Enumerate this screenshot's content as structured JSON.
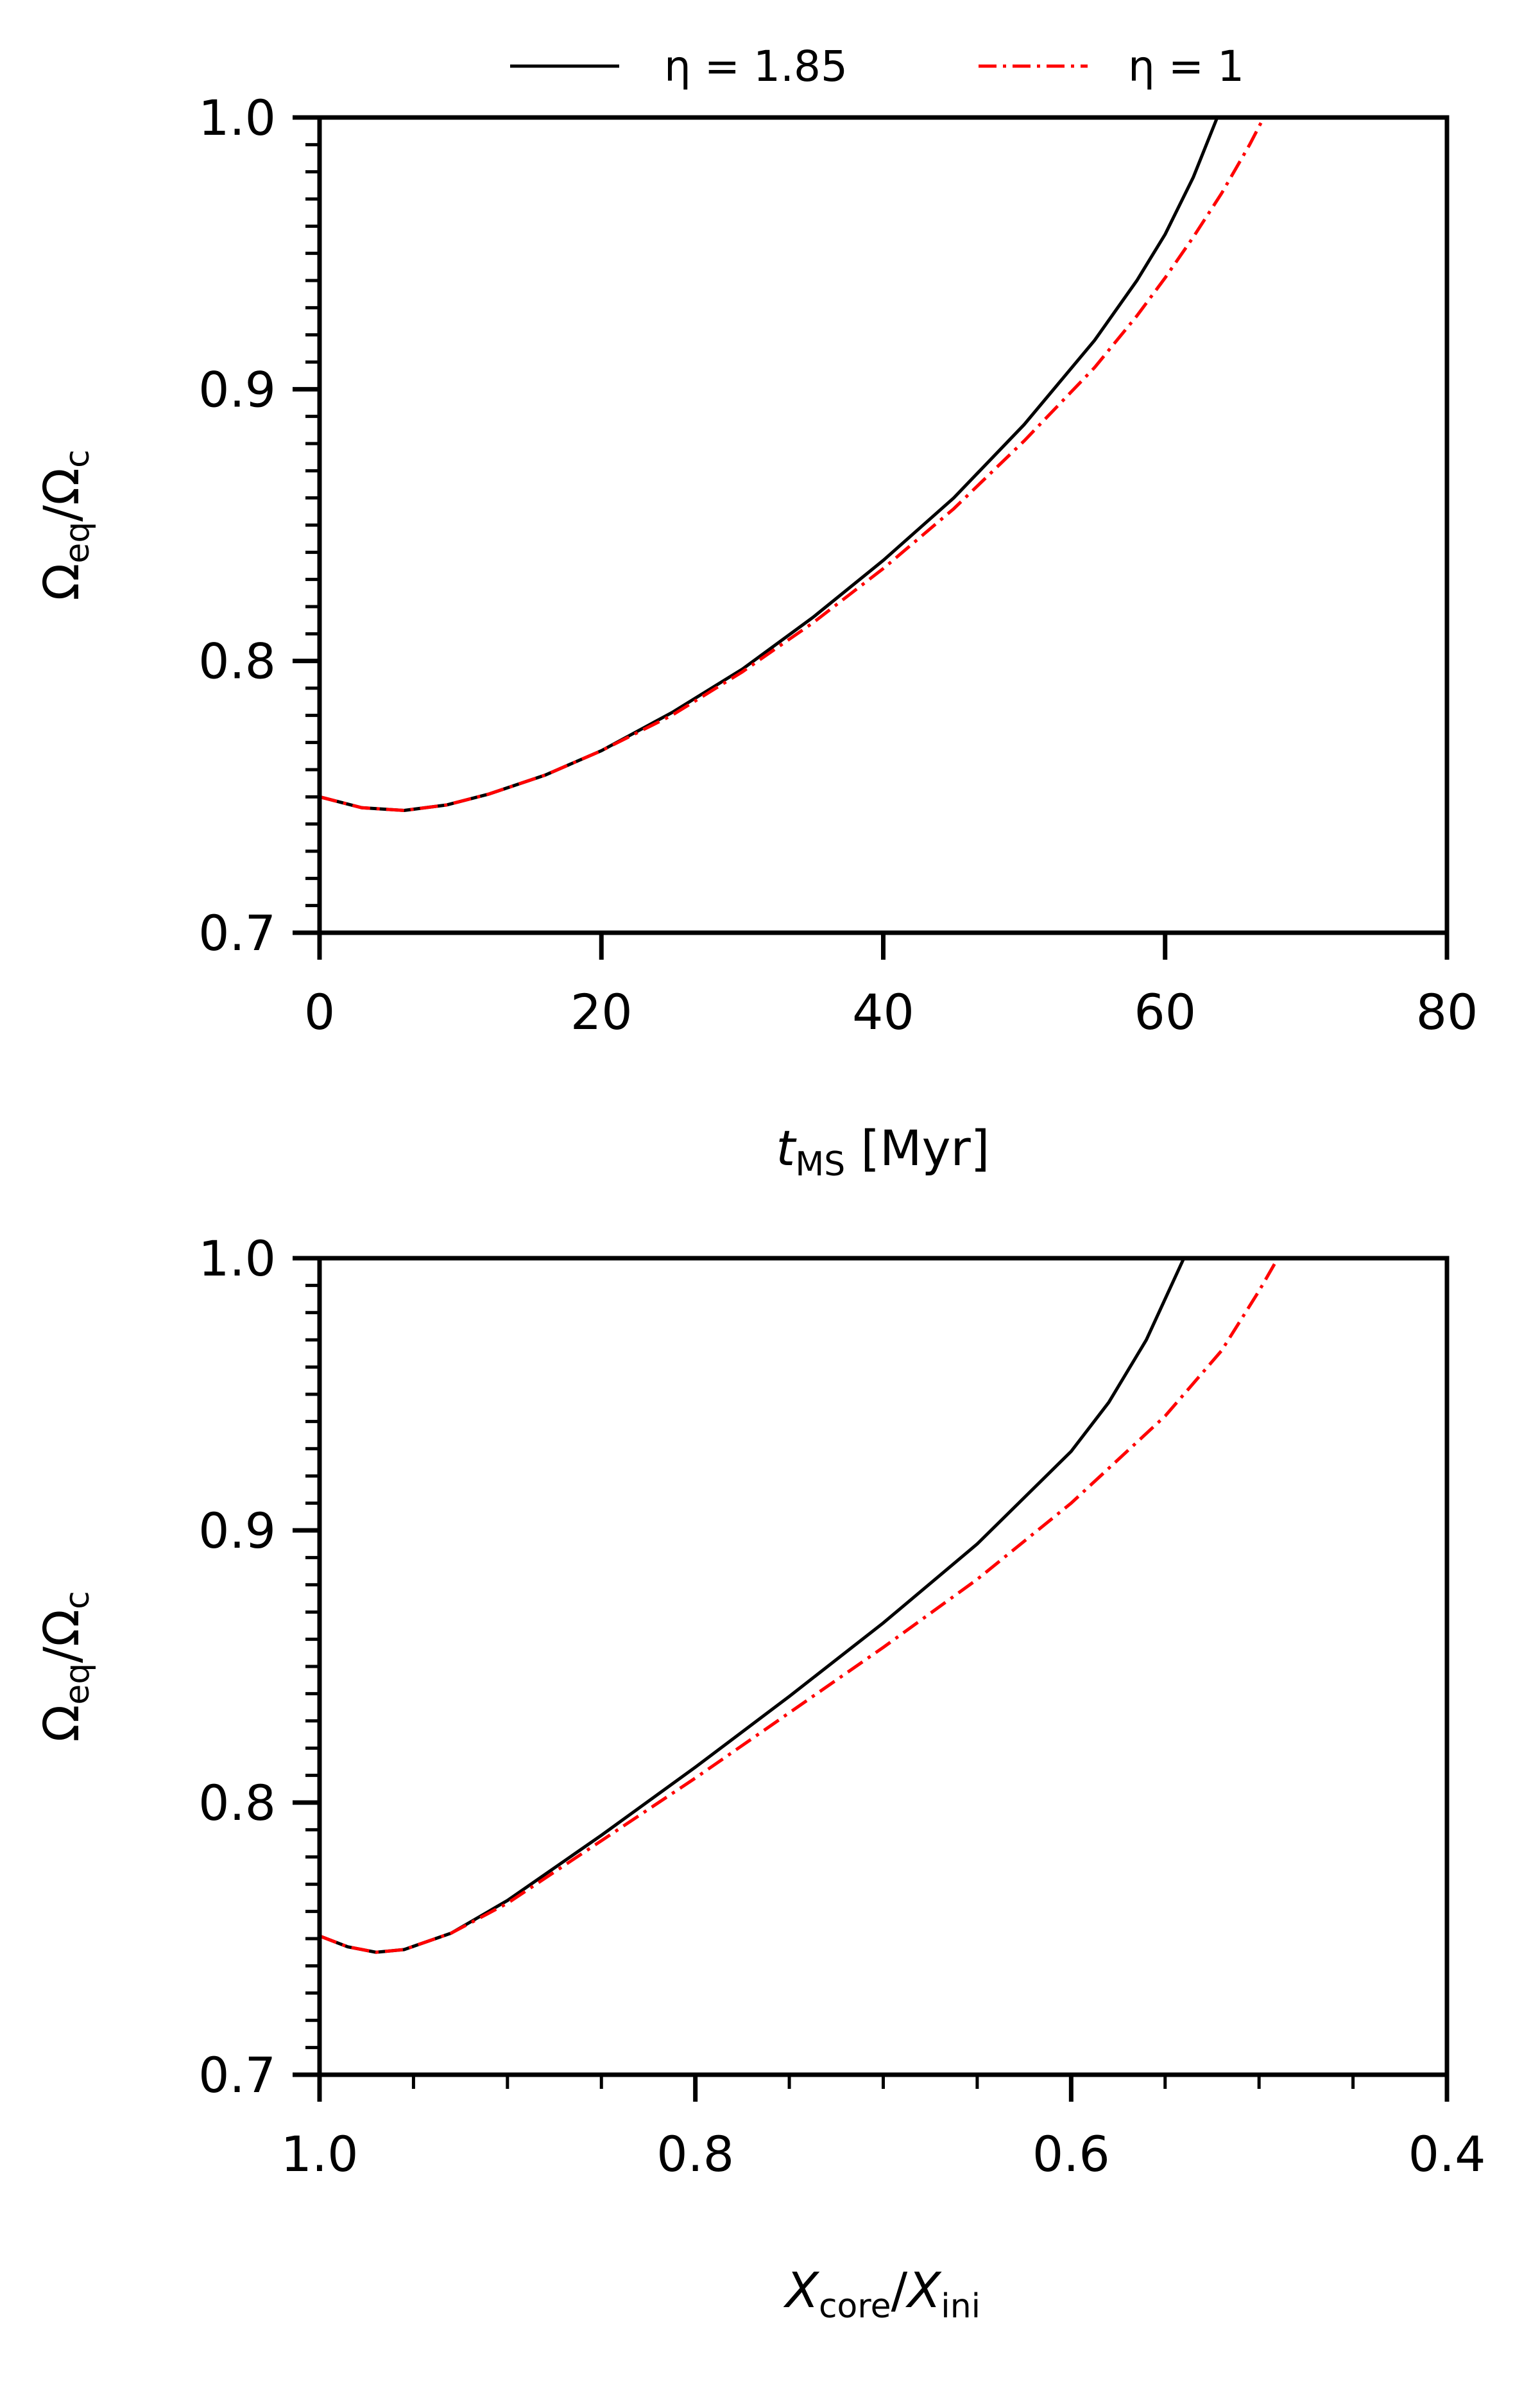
{
  "legend": {
    "placement": "top-center",
    "entries": [
      {
        "label": "η = 1.85",
        "color": "#000000",
        "style": "solid"
      },
      {
        "label": "η = 1",
        "color": "#ff0000",
        "style": "dashdot"
      }
    ]
  },
  "chart_data": [
    {
      "type": "line",
      "xlabel": "t_MS [Myr]",
      "ylabel": "Ω_eq/Ω_c",
      "xlim": [
        0,
        80
      ],
      "ylim": [
        0.7,
        1.0
      ],
      "x_ticks": [
        "0",
        "20",
        "40",
        "60",
        "80"
      ],
      "y_ticks": [
        "0.7",
        "0.8",
        "0.9",
        "1.0"
      ],
      "grid": false,
      "series": [
        {
          "name": "η = 1.85",
          "color": "#000000",
          "x": [
            0,
            3,
            6,
            9,
            12,
            16,
            20,
            25,
            30,
            35,
            40,
            45,
            50,
            55,
            58,
            60,
            62,
            63.7
          ],
          "y": [
            0.75,
            0.746,
            0.745,
            0.747,
            0.751,
            0.758,
            0.767,
            0.781,
            0.797,
            0.816,
            0.837,
            0.86,
            0.887,
            0.918,
            0.94,
            0.957,
            0.978,
            1.0
          ]
        },
        {
          "name": "η = 1",
          "color": "#ff0000",
          "x": [
            0,
            3,
            6,
            9,
            12,
            16,
            20,
            25,
            30,
            35,
            40,
            45,
            50,
            55,
            58,
            60,
            62,
            64,
            66,
            67
          ],
          "y": [
            0.75,
            0.746,
            0.745,
            0.747,
            0.751,
            0.758,
            0.767,
            0.78,
            0.796,
            0.814,
            0.834,
            0.856,
            0.881,
            0.908,
            0.927,
            0.941,
            0.956,
            0.972,
            0.99,
            1.0
          ]
        }
      ]
    },
    {
      "type": "line",
      "xlabel": "X_core/X_ini",
      "ylabel": "Ω_eq/Ω_c",
      "xlim": [
        1.0,
        0.4
      ],
      "ylim": [
        0.7,
        1.0
      ],
      "x_ticks": [
        "1.0",
        "0.8",
        "0.6",
        "0.4"
      ],
      "y_ticks": [
        "0.7",
        "0.8",
        "0.9",
        "1.0"
      ],
      "grid": false,
      "series": [
        {
          "name": "η = 1.85",
          "color": "#000000",
          "x": [
            1.0,
            0.985,
            0.97,
            0.955,
            0.93,
            0.9,
            0.85,
            0.8,
            0.75,
            0.7,
            0.65,
            0.6,
            0.58,
            0.56,
            0.54
          ],
          "y": [
            0.751,
            0.747,
            0.745,
            0.746,
            0.752,
            0.764,
            0.788,
            0.813,
            0.839,
            0.866,
            0.895,
            0.929,
            0.947,
            0.97,
            1.0
          ]
        },
        {
          "name": "η = 1",
          "color": "#ff0000",
          "x": [
            1.0,
            0.985,
            0.97,
            0.955,
            0.93,
            0.9,
            0.85,
            0.8,
            0.75,
            0.7,
            0.65,
            0.6,
            0.55,
            0.52,
            0.5,
            0.49
          ],
          "y": [
            0.751,
            0.747,
            0.745,
            0.746,
            0.752,
            0.763,
            0.786,
            0.809,
            0.833,
            0.857,
            0.882,
            0.91,
            0.942,
            0.966,
            0.988,
            1.0
          ]
        }
      ]
    }
  ]
}
